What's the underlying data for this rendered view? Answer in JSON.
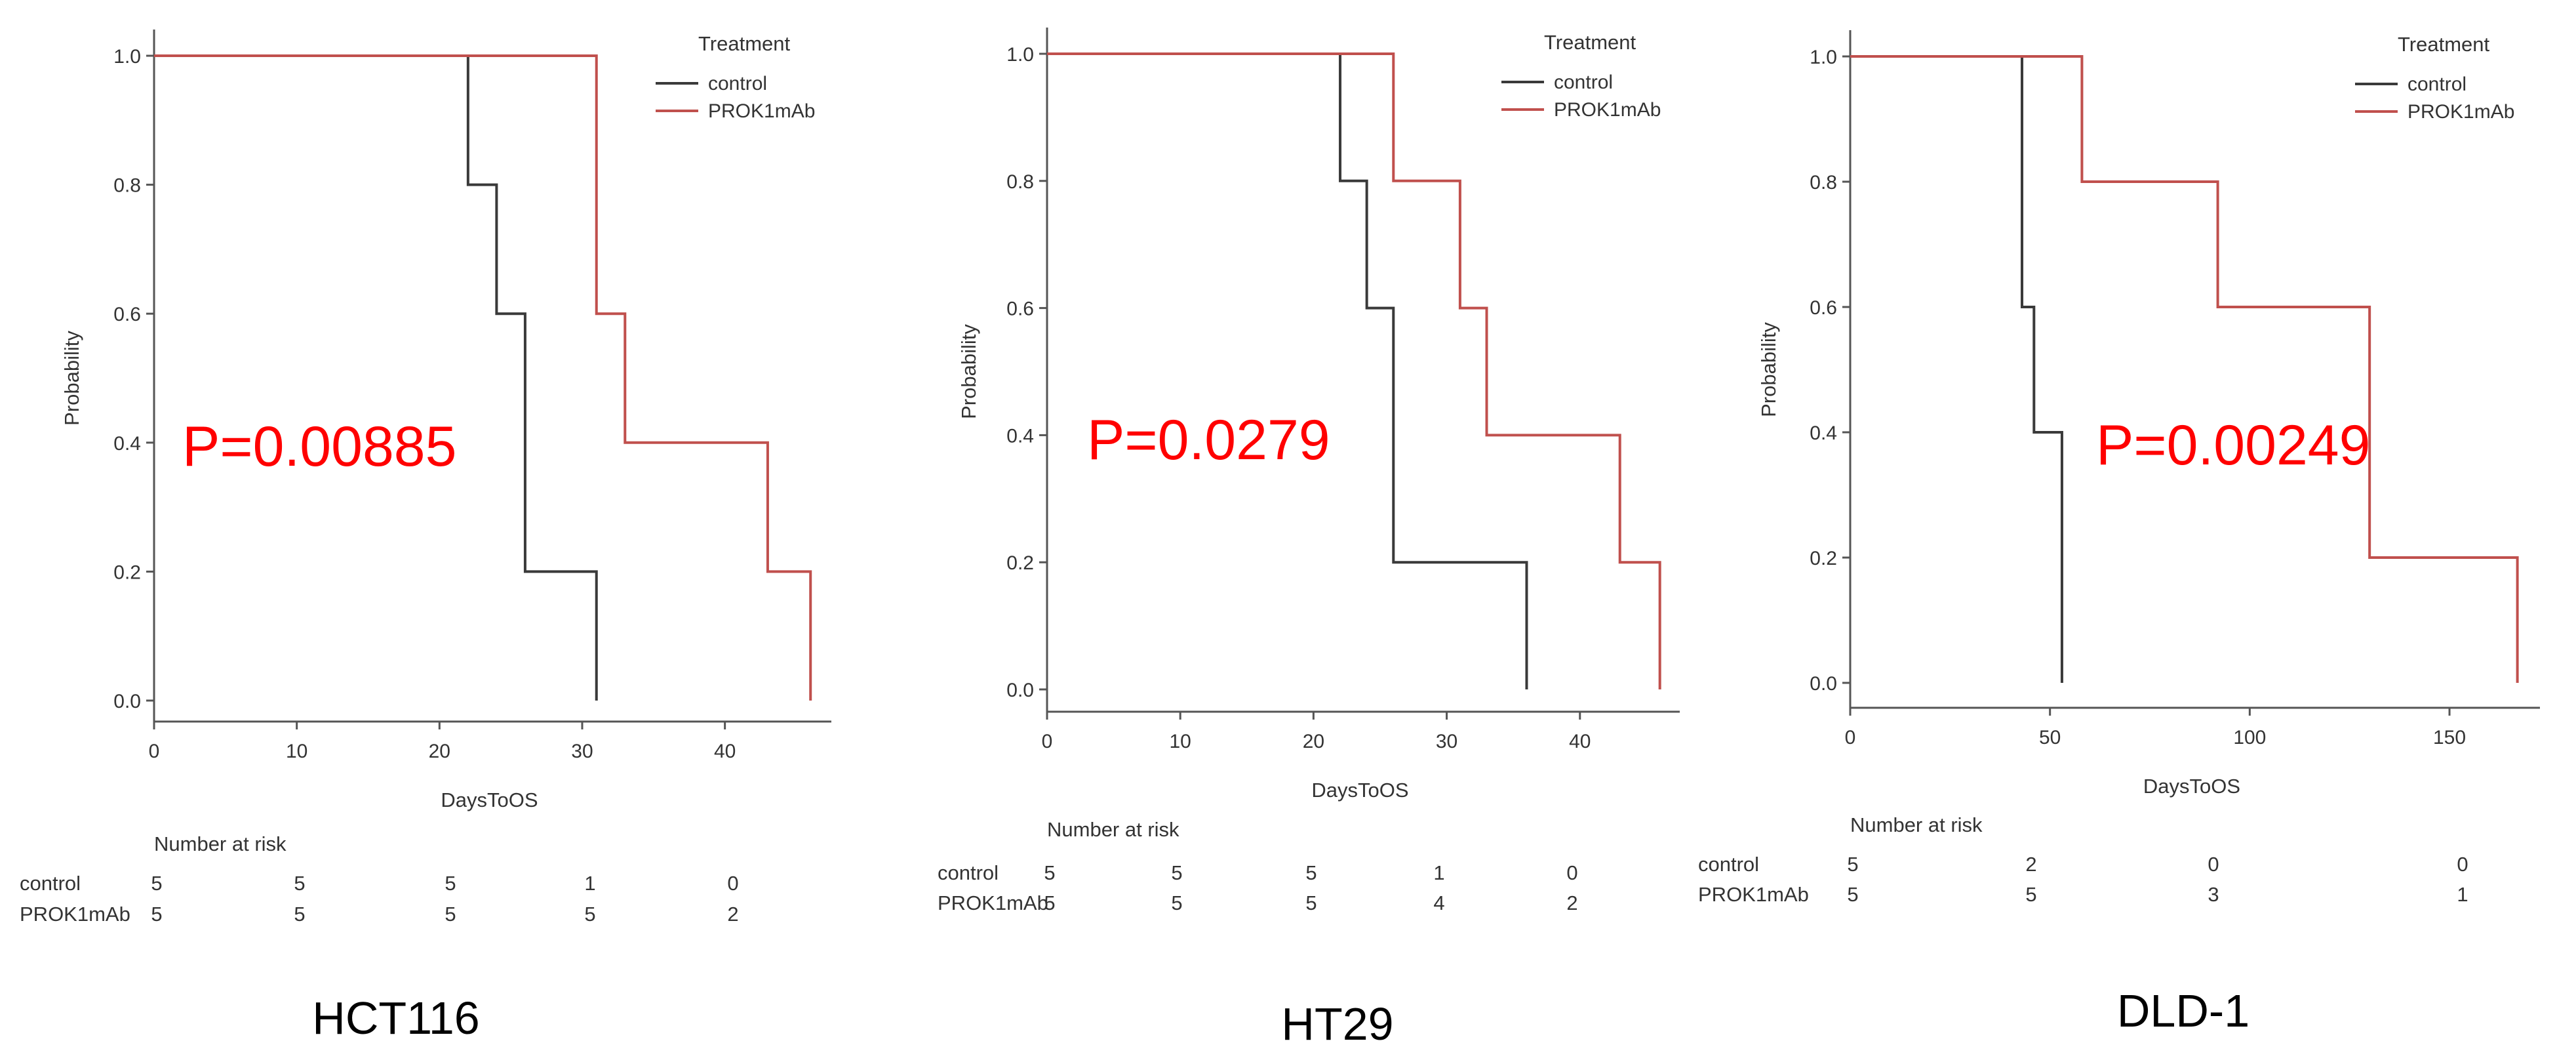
{
  "figure": {
    "legend_title": "Treatment",
    "number_at_risk_label": "Number at risk",
    "colors": {
      "control": "#3a3a3a",
      "PROK1mAb": "#c0504d",
      "pvalue": "#ff0000",
      "axis": "#555555"
    }
  },
  "chart_data": [
    {
      "type": "line",
      "cell_line": "HCT116",
      "pvalue": "P=0.00885",
      "xlabel": "DaysToOS",
      "ylabel": "Probability",
      "xlim": [
        0,
        47
      ],
      "ylim": [
        0,
        1
      ],
      "xticks": [
        0,
        10,
        20,
        30,
        40
      ],
      "yticks": [
        "0.0",
        "0.2",
        "0.4",
        "0.6",
        "0.8",
        "1.0"
      ],
      "legend_position": "top-right",
      "series": [
        {
          "name": "control",
          "steps": [
            [
              0,
              1.0
            ],
            [
              22,
              0.8
            ],
            [
              24,
              0.6
            ],
            [
              26,
              0.2
            ],
            [
              31,
              0.0
            ]
          ]
        },
        {
          "name": "PROK1mAb",
          "steps": [
            [
              0,
              1.0
            ],
            [
              31,
              0.6
            ],
            [
              33,
              0.4
            ],
            [
              43,
              0.2
            ],
            [
              46,
              0.0
            ]
          ]
        }
      ],
      "risk_table": [
        {
          "name": "control",
          "values": [
            "5",
            "5",
            "5",
            "1",
            "0"
          ]
        },
        {
          "name": "PROK1mAb",
          "values": [
            "5",
            "5",
            "5",
            "5",
            "2"
          ]
        }
      ]
    },
    {
      "type": "line",
      "cell_line": "HT29",
      "pvalue": "P=0.0279",
      "xlabel": "DaysToOS",
      "ylabel": "Probability",
      "xlim": [
        0,
        47
      ],
      "ylim": [
        0,
        1
      ],
      "xticks": [
        0,
        10,
        20,
        30,
        40
      ],
      "yticks": [
        "0.0",
        "0.2",
        "0.4",
        "0.6",
        "0.8",
        "1.0"
      ],
      "legend_position": "top-right",
      "series": [
        {
          "name": "control",
          "steps": [
            [
              0,
              1.0
            ],
            [
              22,
              0.8
            ],
            [
              24,
              0.6
            ],
            [
              26,
              0.2
            ],
            [
              36,
              0.0
            ]
          ]
        },
        {
          "name": "PROK1mAb",
          "steps": [
            [
              0,
              1.0
            ],
            [
              26,
              0.8
            ],
            [
              31,
              0.6
            ],
            [
              33,
              0.4
            ],
            [
              43,
              0.2
            ],
            [
              46,
              0.0
            ]
          ]
        }
      ],
      "risk_table": [
        {
          "name": "control",
          "values": [
            "5",
            "5",
            "5",
            "1",
            "0"
          ]
        },
        {
          "name": "PROK1mAb",
          "values": [
            "5",
            "5",
            "5",
            "4",
            "2"
          ]
        }
      ]
    },
    {
      "type": "line",
      "cell_line": "DLD-1",
      "pvalue": "P=0.00249",
      "xlabel": "DaysToOS",
      "ylabel": "Probability",
      "xlim": [
        0,
        171
      ],
      "ylim": [
        0,
        1
      ],
      "xticks": [
        0,
        50,
        100,
        150
      ],
      "yticks": [
        "0.0",
        "0.2",
        "0.4",
        "0.6",
        "0.8",
        "1.0"
      ],
      "legend_position": "top-right",
      "series": [
        {
          "name": "control",
          "steps": [
            [
              0,
              1.0
            ],
            [
              43,
              0.6
            ],
            [
              46,
              0.4
            ],
            [
              53,
              0.0
            ]
          ]
        },
        {
          "name": "PROK1mAb",
          "steps": [
            [
              0,
              1.0
            ],
            [
              58,
              0.8
            ],
            [
              92,
              0.6
            ],
            [
              130,
              0.2
            ],
            [
              167,
              0.0
            ]
          ]
        }
      ],
      "risk_table": [
        {
          "name": "control",
          "values": [
            "5",
            "2",
            "0",
            "0"
          ]
        },
        {
          "name": "PROK1mAb",
          "values": [
            "5",
            "5",
            "3",
            "1"
          ]
        }
      ]
    }
  ]
}
